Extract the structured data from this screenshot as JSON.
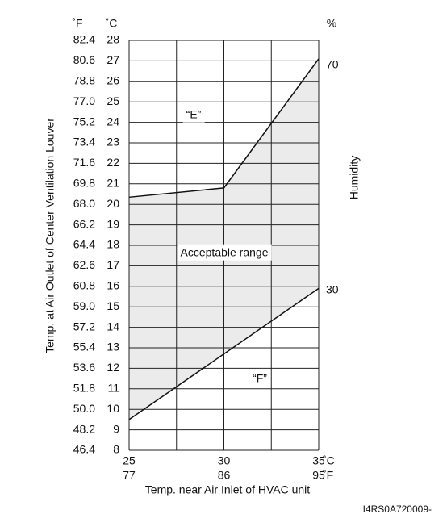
{
  "chart_data": {
    "type": "line",
    "y_unit_f": "˚F",
    "y_unit_c": "˚C",
    "y2_unit": "%",
    "x_unit_c": "˚C",
    "x_unit_f": "˚F",
    "xlabel": "Temp. near Air Inlet of HVAC unit",
    "ylabel": "Temp. at Air Outlet of Center Ventilation Louver",
    "y2label": "Humidity",
    "xlim": [
      25,
      35
    ],
    "xticks": [
      25,
      30,
      35
    ],
    "xgrid": [
      27.5,
      30,
      32.5,
      35
    ],
    "xticks_f": [
      {
        "value": 25,
        "label": "77"
      },
      {
        "value": 30,
        "label": "86"
      },
      {
        "value": 35,
        "label": "95"
      }
    ],
    "ylim": [
      8,
      28
    ],
    "yticks": [
      8,
      9,
      10,
      11,
      12,
      13,
      14,
      15,
      16,
      17,
      18,
      19,
      20,
      21,
      22,
      23,
      24,
      25,
      26,
      27,
      28
    ],
    "yticks_f": [
      {
        "value": 8,
        "label": "46.4"
      },
      {
        "value": 9,
        "label": "48.2"
      },
      {
        "value": 10,
        "label": "50.0"
      },
      {
        "value": 11,
        "label": "51.8"
      },
      {
        "value": 12,
        "label": "53.6"
      },
      {
        "value": 13,
        "label": "55.4"
      },
      {
        "value": 14,
        "label": "57.2"
      },
      {
        "value": 15,
        "label": "59.0"
      },
      {
        "value": 16,
        "label": "60.8"
      },
      {
        "value": 17,
        "label": "62.6"
      },
      {
        "value": 18,
        "label": "64.4"
      },
      {
        "value": 19,
        "label": "66.2"
      },
      {
        "value": 20,
        "label": "68.0"
      },
      {
        "value": 21,
        "label": "69.8"
      },
      {
        "value": 22,
        "label": "71.6"
      },
      {
        "value": 23,
        "label": "73.4"
      },
      {
        "value": 24,
        "label": "75.2"
      },
      {
        "value": 25,
        "label": "77.0"
      },
      {
        "value": 26,
        "label": "78.8"
      },
      {
        "value": 27,
        "label": "80.6"
      },
      {
        "value": 28,
        "label": "82.4"
      }
    ],
    "y2lim": [
      1.6,
      74.4
    ],
    "y2ticks": [
      30,
      70
    ],
    "series": [
      {
        "color": "#111111",
        "x": [
          25,
          30,
          35
        ],
        "values": [
          20.35,
          20.8,
          27.1
        ]
      },
      {
        "color": "#111111",
        "x": [
          25,
          35
        ],
        "values": [
          9.5,
          15.9
        ]
      }
    ],
    "fill_color": "#ebebeb",
    "annotations": [
      "“E”",
      "Acceptable range",
      "“F”"
    ],
    "figure_code": "I4RS0A720009-"
  }
}
